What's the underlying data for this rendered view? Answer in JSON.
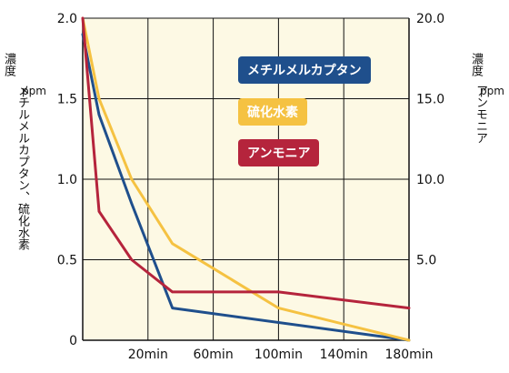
{
  "chart_data": {
    "type": "line",
    "x_ticks": [
      "20min",
      "60min",
      "100min",
      "140min",
      "180min"
    ],
    "y_left": {
      "label_top": "濃度",
      "label_unit": "ppm",
      "label_main": "メチルメルカプタン、硫化水素",
      "ticks": [
        "0",
        "0.5",
        "1.0",
        "1.5",
        "2.0"
      ],
      "ylim": [
        0,
        2.0
      ]
    },
    "y_right": {
      "label_top": "濃度",
      "label_unit": "ppm",
      "label_main": "アンモニア",
      "ticks": [
        "5.0",
        "10.0",
        "15.0",
        "20.0"
      ],
      "ylim": [
        0,
        20.0
      ]
    },
    "xlim": [
      0,
      200
    ],
    "grid": true,
    "series": [
      {
        "name": "メチルメルカプタン",
        "color": "#1f4f8c",
        "axis": "left",
        "x": [
          0,
          10,
          30,
          55,
          200
        ],
        "y": [
          1.9,
          1.4,
          0.85,
          0.2,
          0.0
        ]
      },
      {
        "name": "硫化水素",
        "color": "#f5c242",
        "axis": "left",
        "x": [
          0,
          10,
          30,
          55,
          120,
          200
        ],
        "y": [
          2.0,
          1.5,
          1.0,
          0.6,
          0.2,
          0.0
        ]
      },
      {
        "name": "アンモニア",
        "color": "#b5243c",
        "axis": "right",
        "x": [
          0,
          10,
          30,
          55,
          120,
          200
        ],
        "y": [
          20.0,
          8.0,
          5.0,
          3.0,
          3.0,
          2.0
        ]
      }
    ],
    "legend": [
      "メチルメルカプタン",
      "硫化水素",
      "アンモニア"
    ]
  },
  "colors": {
    "plot_background": "#fdf9e4",
    "grid": "#111111"
  }
}
